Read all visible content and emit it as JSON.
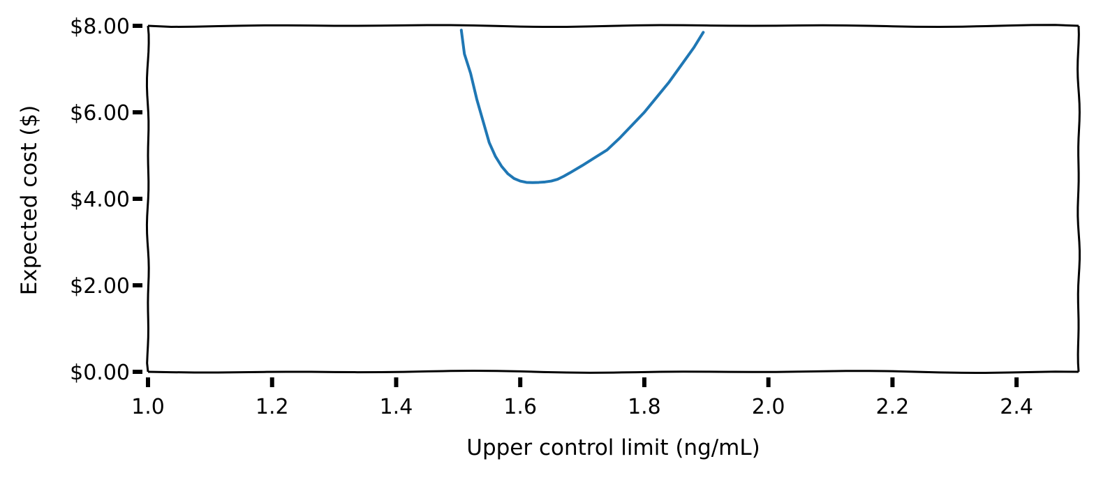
{
  "chart_data": {
    "type": "line",
    "title": "",
    "xlabel": "Upper control limit (ng/mL)",
    "ylabel": "Expected cost ($)",
    "xlim": [
      1.0,
      2.5
    ],
    "ylim": [
      0,
      8
    ],
    "x_ticks": [
      1.0,
      1.2,
      1.4,
      1.6,
      1.8,
      2.0,
      2.2,
      2.4
    ],
    "x_tick_labels": [
      "1.0",
      "1.2",
      "1.4",
      "1.6",
      "1.8",
      "2.0",
      "2.2",
      "2.4"
    ],
    "y_ticks": [
      0,
      2,
      4,
      6,
      8
    ],
    "y_tick_labels": [
      "$0.00",
      "$2.00",
      "$4.00",
      "$6.00",
      "$8.00"
    ],
    "grid": false,
    "legend": "none",
    "style": "xkcd",
    "series": [
      {
        "color": "#1f77b4",
        "x": [
          1.505,
          1.51,
          1.52,
          1.53,
          1.54,
          1.55,
          1.56,
          1.57,
          1.58,
          1.59,
          1.6,
          1.61,
          1.62,
          1.63,
          1.64,
          1.65,
          1.66,
          1.67,
          1.68,
          1.7,
          1.72,
          1.74,
          1.76,
          1.78,
          1.8,
          1.82,
          1.84,
          1.86,
          1.88,
          1.895
        ],
        "y": [
          7.9,
          7.35,
          6.9,
          6.3,
          5.8,
          5.3,
          4.98,
          4.75,
          4.58,
          4.47,
          4.41,
          4.38,
          4.375,
          4.38,
          4.39,
          4.41,
          4.45,
          4.52,
          4.6,
          4.77,
          4.95,
          5.13,
          5.4,
          5.7,
          6.0,
          6.35,
          6.7,
          7.1,
          7.5,
          7.85
        ]
      }
    ]
  }
}
